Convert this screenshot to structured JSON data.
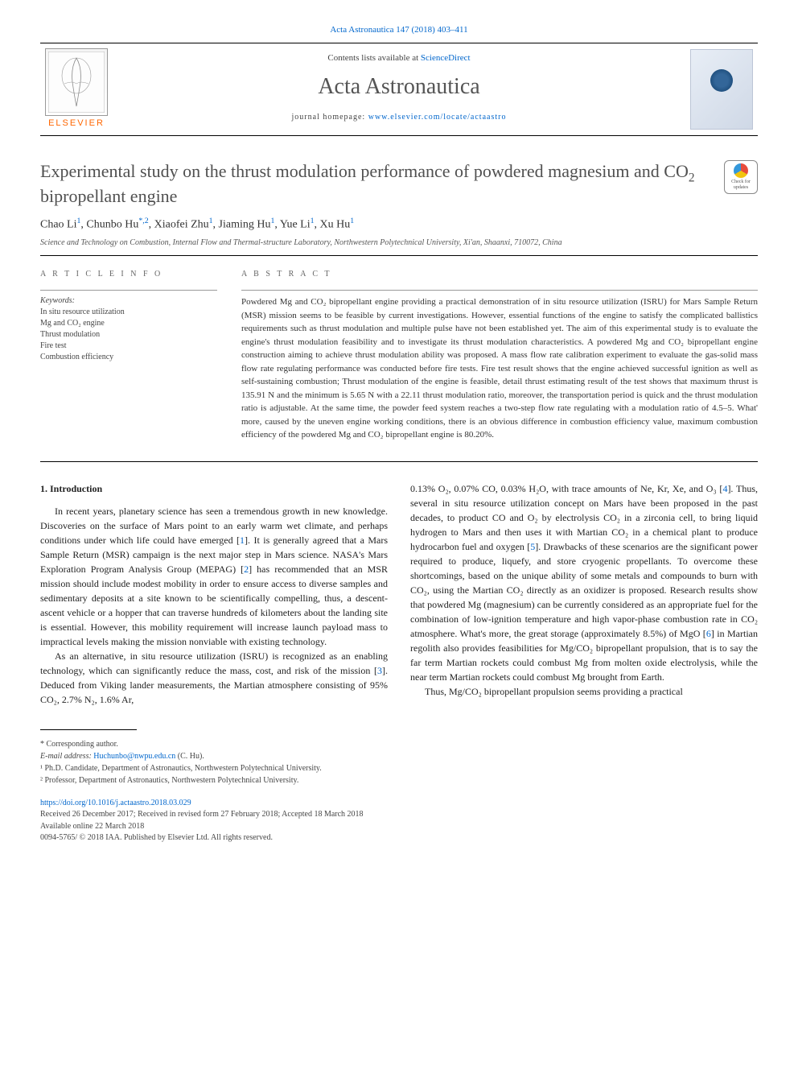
{
  "header": {
    "citation_link": "Acta Astronautica 147 (2018) 403–411",
    "contents_line_prefix": "Contents lists available at ",
    "contents_line_link": "ScienceDirect",
    "journal_title": "Acta Astronautica",
    "homepage_prefix": "journal homepage: ",
    "homepage_url": "www.elsevier.com/locate/actaastro",
    "publisher_text": "ELSEVIER"
  },
  "check_updates": {
    "line1": "Check for",
    "line2": "updates"
  },
  "article": {
    "title_html": "Experimental study on the thrust modulation performance of powdered magnesium and CO<sub>2</sub> bipropellant engine",
    "authors": [
      {
        "name": "Chao Li",
        "sup": "1"
      },
      {
        "name": "Chunbo Hu",
        "sup": "*,2"
      },
      {
        "name": "Xiaofei Zhu",
        "sup": "1"
      },
      {
        "name": "Jiaming Hu",
        "sup": "1"
      },
      {
        "name": "Yue Li",
        "sup": "1"
      },
      {
        "name": "Xu Hu",
        "sup": "1"
      }
    ],
    "affiliation": "Science and Technology on Combustion, Internal Flow and Thermal-structure Laboratory, Northwestern Polytechnical University, Xi'an, Shaanxi, 710072, China"
  },
  "article_info": {
    "heading": "A R T I C L E  I N F O",
    "kw_label": "Keywords:",
    "keywords": [
      "In situ resource utilization",
      "Mg and CO₂ engine",
      "Thrust modulation",
      "Fire test",
      "Combustion efficiency"
    ]
  },
  "abstract": {
    "heading": "A B S T R A C T",
    "text": "Powdered Mg and CO₂ bipropellant engine providing a practical demonstration of in situ resource utilization (ISRU) for Mars Sample Return (MSR) mission seems to be feasible by current investigations. However, essential functions of the engine to satisfy the complicated ballistics requirements such as thrust modulation and multiple pulse have not been established yet. The aim of this experimental study is to evaluate the engine's thrust modulation feasibility and to investigate its thrust modulation characteristics. A powdered Mg and CO₂ bipropellant engine construction aiming to achieve thrust modulation ability was proposed. A mass flow rate calibration experiment to evaluate the gas-solid mass flow rate regulating performance was conducted before fire tests. Fire test result shows that the engine achieved successful ignition as well as self-sustaining combustion; Thrust modulation of the engine is feasible, detail thrust estimating result of the test shows that maximum thrust is 135.91 N and the minimum is 5.65 N with a 22.11 thrust modulation ratio, moreover, the transportation period is quick and the thrust modulation ratio is adjustable. At the same time, the powder feed system reaches a two-step flow rate regulating with a modulation ratio of 4.5–5. What' more, caused by the uneven engine working conditions, there is an obvious difference in combustion efficiency value, maximum combustion efficiency of the powdered Mg and CO₂ bipropellant engine is 80.20%."
  },
  "body": {
    "section_title": "1. Introduction",
    "para1": "In recent years, planetary science has seen a tremendous growth in new knowledge. Discoveries on the surface of Mars point to an early warm wet climate, and perhaps conditions under which life could have emerged [1]. It is generally agreed that a Mars Sample Return (MSR) campaign is the next major step in Mars science. NASA's Mars Exploration Program Analysis Group (MEPAG) [2] has recommended that an MSR mission should include modest mobility in order to ensure access to diverse samples and sedimentary deposits at a site known to be scientifically compelling, thus, a descent-ascent vehicle or a hopper that can traverse hundreds of kilometers about the landing site is essential. However, this mobility requirement will increase launch payload mass to impractical levels making the mission nonviable with existing technology.",
    "para2": "As an alternative, in situ resource utilization (ISRU) is recognized as an enabling technology, which can significantly reduce the mass, cost, and risk of the mission [3]. Deduced from Viking lander measurements, the Martian atmosphere consisting of 95% CO₂, 2.7% N₂, 1.6% Ar,",
    "para3": "0.13% O₂, 0.07% CO, 0.03% H₂O, with trace amounts of Ne, Kr, Xe, and O₃ [4]. Thus, several in situ resource utilization concept on Mars have been proposed in the past decades, to product CO and O₂ by electrolysis CO₂ in a zirconia cell, to bring liquid hydrogen to Mars and then uses it with Martian CO₂ in a chemical plant to produce hydrocarbon fuel and oxygen [5]. Drawbacks of these scenarios are the significant power required to produce, liquefy, and store cryogenic propellants. To overcome these shortcomings, based on the unique ability of some metals and compounds to burn with CO₂, using the Martian CO₂ directly as an oxidizer is proposed. Research results show that powdered Mg (magnesium) can be currently considered as an appropriate fuel for the combination of low-ignition temperature and high vapor-phase combustion rate in CO₂ atmosphere. What's more, the great storage (approximately 8.5%) of MgO [6] in Martian regolith also provides feasibilities for Mg/CO₂ bipropellant propulsion, that is to say the far term Martian rockets could combust Mg from molten oxide electrolysis, while the near term Martian rockets could combust Mg brought from Earth.",
    "para4": "Thus, Mg/CO₂ bipropellant propulsion seems providing a practical"
  },
  "footnotes": {
    "corr": "* Corresponding author.",
    "email_label": "E-mail address: ",
    "email": "Huchunbo@nwpu.edu.cn",
    "email_suffix": " (C. Hu).",
    "fn1": "¹ Ph.D. Candidate, Department of Astronautics, Northwestern Polytechnical University.",
    "fn2": "² Professor, Department of Astronautics, Northwestern Polytechnical University."
  },
  "doi": {
    "url": "https://doi.org/10.1016/j.actaastro.2018.03.029",
    "received": "Received 26 December 2017; Received in revised form 27 February 2018; Accepted 18 March 2018",
    "available": "Available online 22 March 2018",
    "copyright": "0094-5765/ © 2018 IAA. Published by Elsevier Ltd. All rights reserved."
  },
  "colors": {
    "link": "#0066cc",
    "publisher": "#ff6600",
    "text": "#333333",
    "heading": "#505050"
  }
}
